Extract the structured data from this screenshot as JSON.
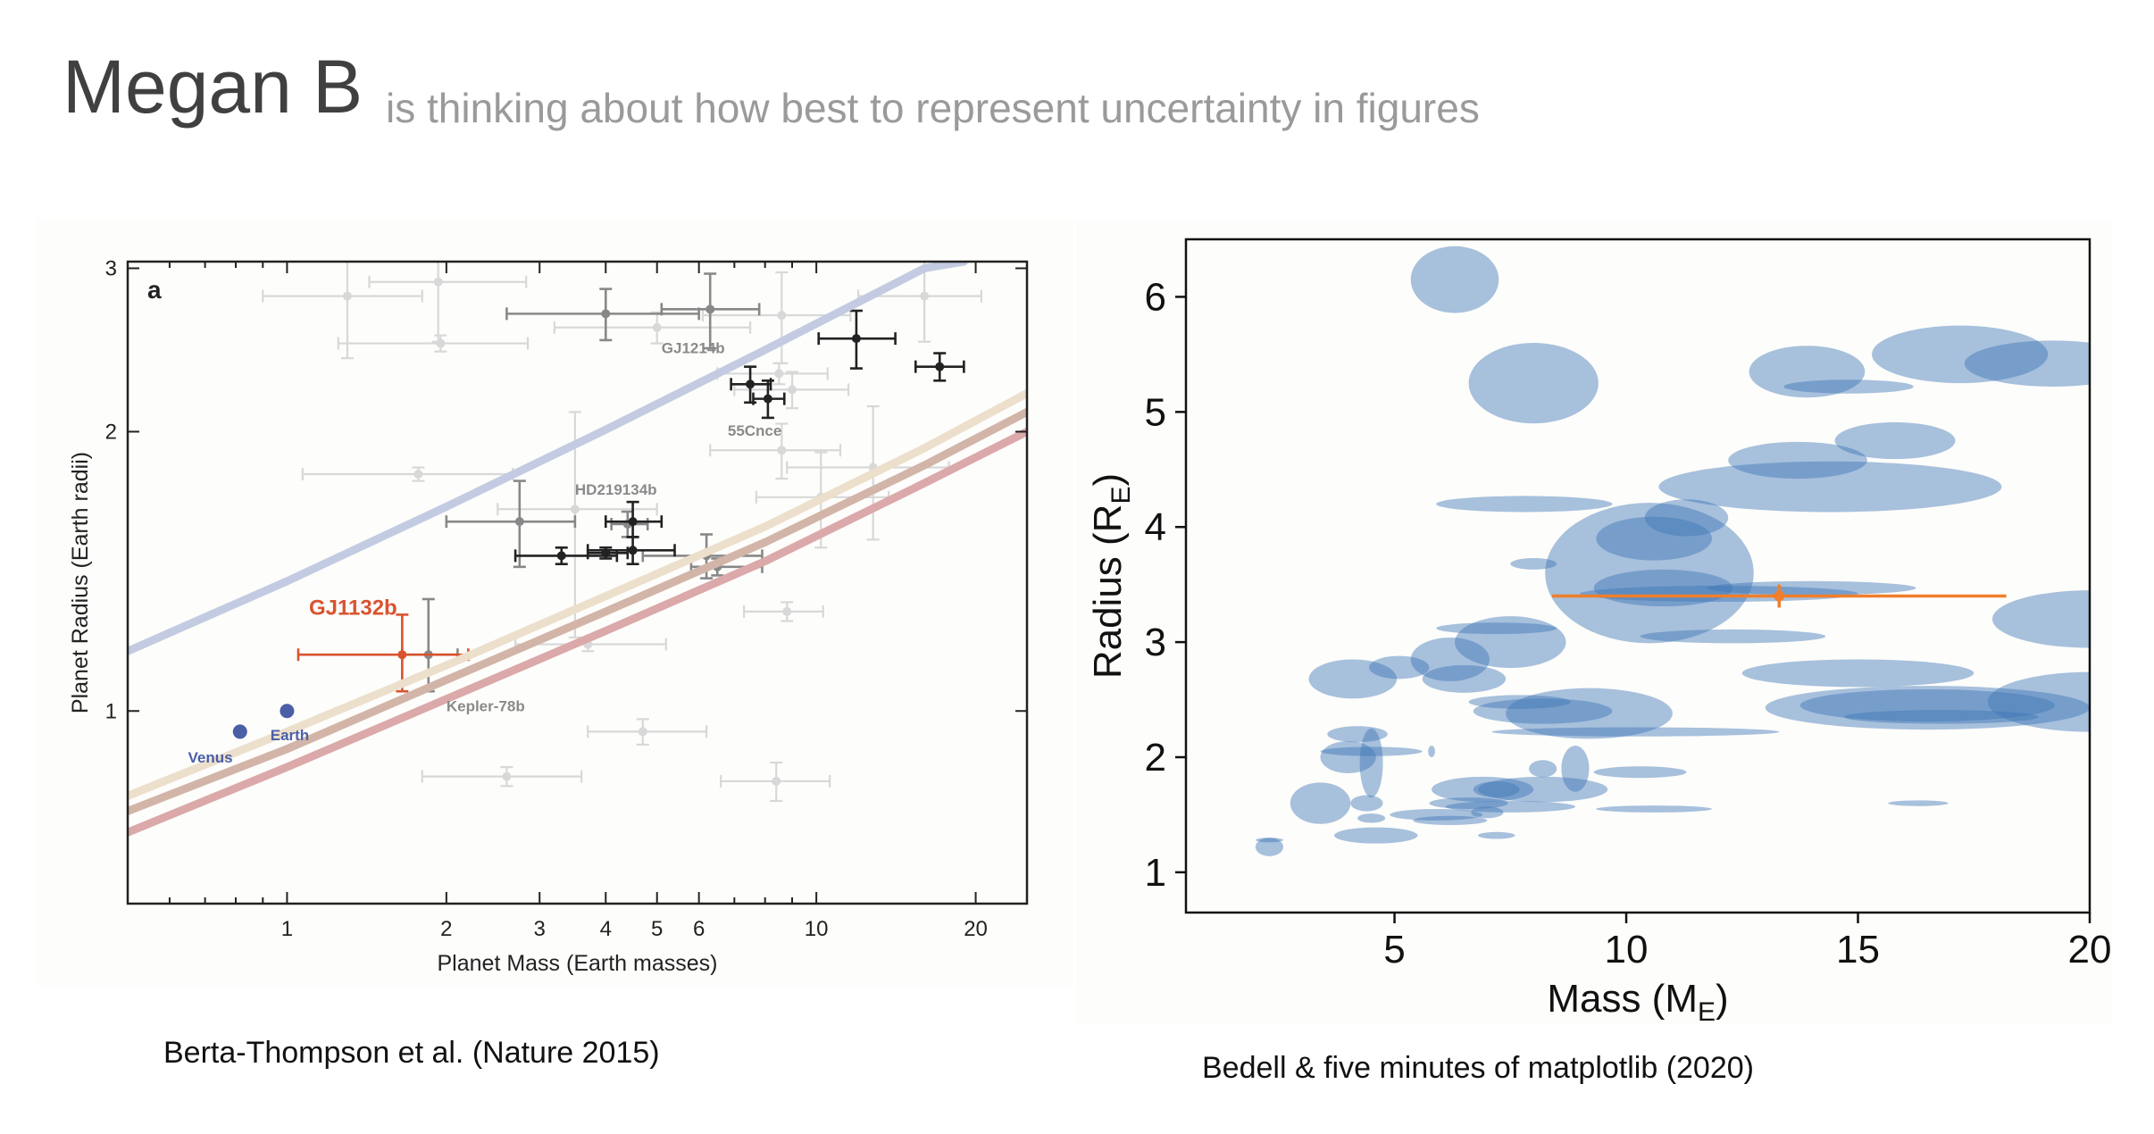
{
  "header": {
    "name": "Megan B",
    "status": "is thinking about how best to represent uncertainty in figures"
  },
  "captions": {
    "left": "Berta-Thompson et al. (Nature 2015)",
    "right": "Bedell & five minutes of matplotlib (2020)"
  },
  "chart_data": [
    {
      "type": "scatter",
      "panel_label": "a",
      "xlabel": "Planet Mass (Earth masses)",
      "ylabel": "Planet Radius (Earth radii)",
      "xscale": "log",
      "yscale": "log",
      "xlim": [
        0.5,
        25
      ],
      "ylim": [
        0.62,
        3.05
      ],
      "x_ticks": [
        1,
        2,
        3,
        4,
        5,
        6,
        10,
        20
      ],
      "x_ticklabels": [
        "1",
        "2",
        "3",
        "4",
        "5",
        "6",
        "10",
        "20"
      ],
      "y_ticks": [
        1,
        2,
        3
      ],
      "y_ticklabels": [
        "1",
        "2",
        "3"
      ],
      "colors": {
        "highlight": "#d9532f",
        "solar": "#4b5fa6",
        "dark": "#222222",
        "mid": "#888888",
        "faint": "#d8d8d8"
      },
      "curves": [
        {
          "color": "#c3cbe2",
          "points": [
            [
              0.5,
              1.16
            ],
            [
              1,
              1.38
            ],
            [
              2,
              1.66
            ],
            [
              4,
              2.01
            ],
            [
              8,
              2.45
            ],
            [
              16,
              3.0
            ],
            [
              19,
              3.05
            ]
          ]
        },
        {
          "color": "#ecdfcb",
          "points": [
            [
              0.5,
              0.81
            ],
            [
              1,
              0.95
            ],
            [
              2,
              1.12
            ],
            [
              4,
              1.33
            ],
            [
              8,
              1.58
            ],
            [
              16,
              1.92
            ],
            [
              25,
              2.2
            ]
          ]
        },
        {
          "color": "#d2b5a8",
          "points": [
            [
              0.5,
              0.78
            ],
            [
              1,
              0.91
            ],
            [
              2,
              1.08
            ],
            [
              4,
              1.28
            ],
            [
              8,
              1.52
            ],
            [
              16,
              1.84
            ],
            [
              25,
              2.1
            ]
          ]
        },
        {
          "color": "#dba9a9",
          "points": [
            [
              0.5,
              0.74
            ],
            [
              1,
              0.87
            ],
            [
              2,
              1.03
            ],
            [
              4,
              1.22
            ],
            [
              8,
              1.45
            ],
            [
              16,
              1.76
            ],
            [
              25,
              2.0
            ]
          ]
        }
      ],
      "points": [
        {
          "x": 1.65,
          "y": 1.15,
          "xerr": [
            0.6,
            0.55
          ],
          "yerr": [
            0.1,
            0.12
          ],
          "style": "highlight"
        },
        {
          "x": 1.85,
          "y": 1.15,
          "xerr": [
            0.2,
            0.25
          ],
          "yerr": [
            0.1,
            0.17
          ],
          "style": "mid"
        },
        {
          "x": 0.815,
          "y": 0.95,
          "style": "solar"
        },
        {
          "x": 1.0,
          "y": 1.0,
          "style": "solar"
        },
        {
          "x": 4.5,
          "y": 1.6,
          "xerr": [
            0.5,
            0.6
          ],
          "yerr": [
            0.06,
            0.08
          ],
          "style": "dark"
        },
        {
          "x": 4.5,
          "y": 1.49,
          "xerr": [
            0.8,
            0.9
          ],
          "yerr": [
            0.05,
            0.05
          ],
          "style": "dark"
        },
        {
          "x": 3.3,
          "y": 1.47,
          "xerr": [
            0.6,
            0.9
          ],
          "yerr": [
            0.03,
            0.03
          ],
          "style": "dark"
        },
        {
          "x": 4.0,
          "y": 1.48,
          "xerr": [
            0.3,
            0.4
          ],
          "yerr": [
            0.02,
            0.02
          ],
          "style": "dark"
        },
        {
          "x": 7.5,
          "y": 2.25,
          "xerr": [
            0.6,
            0.7
          ],
          "yerr": [
            0.1,
            0.1
          ],
          "style": "dark"
        },
        {
          "x": 8.1,
          "y": 2.17,
          "xerr": [
            0.5,
            0.6
          ],
          "yerr": [
            0.1,
            0.1
          ],
          "style": "dark"
        },
        {
          "x": 11.9,
          "y": 2.52,
          "xerr": [
            1.8,
            2.2
          ],
          "yerr": [
            0.18,
            0.18
          ],
          "style": "dark"
        },
        {
          "x": 17.1,
          "y": 2.35,
          "xerr": [
            1.7,
            1.9
          ],
          "yerr": [
            0.08,
            0.08
          ],
          "style": "dark"
        },
        {
          "x": 6.3,
          "y": 2.71,
          "xerr": [
            1.2,
            1.5
          ],
          "yerr": [
            0.25,
            0.25
          ],
          "style": "mid"
        },
        {
          "x": 4.0,
          "y": 2.68,
          "xerr": [
            1.4,
            2.0
          ],
          "yerr": [
            0.17,
            0.17
          ],
          "style": "mid"
        },
        {
          "x": 2.75,
          "y": 1.6,
          "xerr": [
            0.75,
            0.75
          ],
          "yerr": [
            0.17,
            0.17
          ],
          "style": "mid"
        },
        {
          "x": 6.2,
          "y": 1.47,
          "xerr": [
            1.5,
            1.7
          ],
          "yerr": [
            0.08,
            0.08
          ],
          "style": "mid"
        },
        {
          "x": 6.5,
          "y": 1.43,
          "xerr": [
            0.7,
            1.4
          ],
          "yerr": [
            0.03,
            0.03
          ],
          "style": "mid"
        },
        {
          "x": 4.4,
          "y": 1.59,
          "xerr": [
            0.3,
            0.4
          ],
          "yerr": [
            0.05,
            0.05
          ],
          "style": "mid"
        },
        {
          "x": 8.6,
          "y": 1.91,
          "xerr": [
            2.3,
            2.5
          ],
          "yerr": [
            0.13,
            0.13
          ],
          "style": "faint"
        },
        {
          "x": 9.0,
          "y": 2.22,
          "xerr": [
            2.0,
            2.5
          ],
          "yerr": [
            0.1,
            0.1
          ],
          "style": "faint"
        },
        {
          "x": 8.5,
          "y": 2.31,
          "xerr": [
            2.0,
            2.0
          ],
          "yerr": [
            0.06,
            0.06
          ],
          "style": "faint"
        },
        {
          "x": 1.3,
          "y": 2.8,
          "xerr": [
            0.4,
            0.5
          ],
          "yerr": [
            0.4,
            0.4
          ],
          "style": "faint"
        },
        {
          "x": 1.93,
          "y": 2.9,
          "xerr": [
            0.5,
            0.9
          ],
          "yerr": [
            0.4,
            0.4
          ],
          "style": "faint"
        },
        {
          "x": 1.95,
          "y": 2.49,
          "xerr": [
            0.7,
            0.9
          ],
          "yerr": [
            0.05,
            0.05
          ],
          "style": "faint"
        },
        {
          "x": 5.0,
          "y": 2.59,
          "xerr": [
            1.8,
            2.5
          ],
          "yerr": [
            0.1,
            0.1
          ],
          "style": "faint"
        },
        {
          "x": 8.6,
          "y": 2.67,
          "xerr": [
            2.5,
            3.0
          ],
          "yerr": [
            0.3,
            0.3
          ],
          "style": "faint"
        },
        {
          "x": 16.0,
          "y": 2.8,
          "xerr": [
            4.0,
            4.5
          ],
          "yerr": [
            0.3,
            0.4
          ],
          "style": "faint"
        },
        {
          "x": 8.8,
          "y": 1.28,
          "xerr": [
            1.5,
            1.5
          ],
          "yerr": [
            0.03,
            0.03
          ],
          "style": "faint"
        },
        {
          "x": 3.7,
          "y": 1.18,
          "xerr": [
            1.0,
            1.5
          ],
          "yerr": [
            0.02,
            0.02
          ],
          "style": "faint"
        },
        {
          "x": 4.7,
          "y": 0.95,
          "xerr": [
            1.0,
            1.5
          ],
          "yerr": [
            0.03,
            0.03
          ],
          "style": "faint"
        },
        {
          "x": 2.6,
          "y": 0.85,
          "xerr": [
            0.8,
            1.0
          ],
          "yerr": [
            0.02,
            0.02
          ],
          "style": "faint"
        },
        {
          "x": 8.4,
          "y": 0.84,
          "xerr": [
            1.8,
            2.2
          ],
          "yerr": [
            0.04,
            0.04
          ],
          "style": "faint"
        },
        {
          "x": 1.77,
          "y": 1.8,
          "xerr": [
            0.7,
            0.9
          ],
          "yerr": [
            0.03,
            0.03
          ],
          "style": "faint"
        },
        {
          "x": 12.8,
          "y": 1.83,
          "xerr": [
            4.0,
            5.0
          ],
          "yerr": [
            0.3,
            0.3
          ],
          "style": "faint"
        },
        {
          "x": 10.2,
          "y": 1.7,
          "xerr": [
            2.5,
            3.5
          ],
          "yerr": [
            0.2,
            0.2
          ],
          "style": "faint"
        },
        {
          "x": 3.5,
          "y": 1.65,
          "xerr": [
            1.0,
            1.5
          ],
          "yerr": [
            0.45,
            0.45
          ],
          "style": "faint"
        }
      ],
      "annotations": [
        {
          "text": "GJ1132b",
          "x": 1.1,
          "y": 1.27,
          "style": "highlight-label"
        },
        {
          "text": "Venus",
          "x": 0.65,
          "y": 0.88,
          "style": "solar-label"
        },
        {
          "text": "Earth",
          "x": 0.93,
          "y": 0.93,
          "style": "solar-label"
        },
        {
          "text": "Kepler-78b",
          "x": 2.0,
          "y": 1.0,
          "style": "grey-label"
        },
        {
          "text": "HD219134b",
          "x": 3.5,
          "y": 1.71,
          "style": "grey-label"
        },
        {
          "text": "55Cnce",
          "x": 6.8,
          "y": 1.98,
          "style": "grey-label"
        },
        {
          "text": "GJ1214b",
          "x": 5.1,
          "y": 2.43,
          "style": "grey-label"
        }
      ]
    },
    {
      "type": "scatter",
      "xlabel": "Mass (M_E)",
      "ylabel": "Radius (R_E)",
      "xlim": [
        0.5,
        20
      ],
      "ylim": [
        0.65,
        6.5
      ],
      "x_ticks": [
        5,
        10,
        15,
        20
      ],
      "y_ticks": [
        1,
        2,
        3,
        4,
        5,
        6
      ],
      "ellipse_color": "#3d76b5",
      "highlight_color": "#ef7f2c",
      "ellipses": [
        {
          "x": 6.3,
          "y": 6.15,
          "w": 1.9,
          "h": 0.58
        },
        {
          "x": 8.0,
          "y": 5.25,
          "w": 2.8,
          "h": 0.7
        },
        {
          "x": 13.9,
          "y": 5.35,
          "w": 2.5,
          "h": 0.45
        },
        {
          "x": 17.2,
          "y": 5.5,
          "w": 3.8,
          "h": 0.5
        },
        {
          "x": 19.2,
          "y": 5.42,
          "w": 3.8,
          "h": 0.4
        },
        {
          "x": 15.8,
          "y": 4.75,
          "w": 2.6,
          "h": 0.32
        },
        {
          "x": 14.8,
          "y": 5.22,
          "w": 2.8,
          "h": 0.12
        },
        {
          "x": 13.7,
          "y": 4.58,
          "w": 3.0,
          "h": 0.32
        },
        {
          "x": 14.4,
          "y": 4.35,
          "w": 7.4,
          "h": 0.44
        },
        {
          "x": 7.8,
          "y": 4.2,
          "w": 3.8,
          "h": 0.14
        },
        {
          "x": 11.3,
          "y": 4.08,
          "w": 1.8,
          "h": 0.32
        },
        {
          "x": 10.6,
          "y": 3.9,
          "w": 2.5,
          "h": 0.38
        },
        {
          "x": 10.5,
          "y": 3.6,
          "w": 4.5,
          "h": 1.22
        },
        {
          "x": 8.0,
          "y": 3.68,
          "w": 1.0,
          "h": 0.1
        },
        {
          "x": 10.8,
          "y": 3.47,
          "w": 3.0,
          "h": 0.32
        },
        {
          "x": 14.0,
          "y": 3.47,
          "w": 4.5,
          "h": 0.12
        },
        {
          "x": 12.0,
          "y": 3.42,
          "w": 6.0,
          "h": 0.14
        },
        {
          "x": 12.3,
          "y": 3.05,
          "w": 4.0,
          "h": 0.12
        },
        {
          "x": 20.0,
          "y": 3.2,
          "w": 4.2,
          "h": 0.5
        },
        {
          "x": 7.5,
          "y": 3.0,
          "w": 2.4,
          "h": 0.45
        },
        {
          "x": 7.2,
          "y": 3.12,
          "w": 2.6,
          "h": 0.1
        },
        {
          "x": 6.2,
          "y": 2.85,
          "w": 1.7,
          "h": 0.38
        },
        {
          "x": 5.1,
          "y": 2.78,
          "w": 1.3,
          "h": 0.2
        },
        {
          "x": 4.1,
          "y": 2.68,
          "w": 1.9,
          "h": 0.34
        },
        {
          "x": 6.5,
          "y": 2.68,
          "w": 1.8,
          "h": 0.24
        },
        {
          "x": 15.0,
          "y": 2.73,
          "w": 5.0,
          "h": 0.24
        },
        {
          "x": 20.0,
          "y": 2.48,
          "w": 4.4,
          "h": 0.52
        },
        {
          "x": 16.5,
          "y": 2.43,
          "w": 7.0,
          "h": 0.38
        },
        {
          "x": 16.5,
          "y": 2.45,
          "w": 5.5,
          "h": 0.28
        },
        {
          "x": 16.8,
          "y": 2.35,
          "w": 4.2,
          "h": 0.12
        },
        {
          "x": 9.2,
          "y": 2.38,
          "w": 3.6,
          "h": 0.44
        },
        {
          "x": 8.2,
          "y": 2.4,
          "w": 3.0,
          "h": 0.22
        },
        {
          "x": 7.7,
          "y": 2.48,
          "w": 2.2,
          "h": 0.12
        },
        {
          "x": 10.2,
          "y": 2.22,
          "w": 6.2,
          "h": 0.08
        },
        {
          "x": 4.2,
          "y": 2.2,
          "w": 1.3,
          "h": 0.14
        },
        {
          "x": 4.0,
          "y": 2.0,
          "w": 1.2,
          "h": 0.28
        },
        {
          "x": 4.5,
          "y": 2.05,
          "w": 2.2,
          "h": 0.08
        },
        {
          "x": 4.5,
          "y": 1.95,
          "w": 0.5,
          "h": 0.6
        },
        {
          "x": 5.8,
          "y": 2.05,
          "w": 0.15,
          "h": 0.1
        },
        {
          "x": 8.2,
          "y": 1.9,
          "w": 0.6,
          "h": 0.15
        },
        {
          "x": 8.9,
          "y": 1.9,
          "w": 0.6,
          "h": 0.4
        },
        {
          "x": 10.3,
          "y": 1.87,
          "w": 2.0,
          "h": 0.1
        },
        {
          "x": 3.4,
          "y": 1.6,
          "w": 1.3,
          "h": 0.36
        },
        {
          "x": 4.4,
          "y": 1.6,
          "w": 0.7,
          "h": 0.14
        },
        {
          "x": 6.9,
          "y": 1.72,
          "w": 2.2,
          "h": 0.22
        },
        {
          "x": 7.2,
          "y": 1.72,
          "w": 1.0,
          "h": 0.14
        },
        {
          "x": 8.2,
          "y": 1.72,
          "w": 2.8,
          "h": 0.22
        },
        {
          "x": 6.6,
          "y": 1.6,
          "w": 1.7,
          "h": 0.1
        },
        {
          "x": 7.5,
          "y": 1.57,
          "w": 2.8,
          "h": 0.1
        },
        {
          "x": 10.6,
          "y": 1.55,
          "w": 2.5,
          "h": 0.06
        },
        {
          "x": 5.9,
          "y": 1.5,
          "w": 2.0,
          "h": 0.1
        },
        {
          "x": 6.2,
          "y": 1.45,
          "w": 1.6,
          "h": 0.08
        },
        {
          "x": 7.0,
          "y": 1.52,
          "w": 0.7,
          "h": 0.1
        },
        {
          "x": 4.5,
          "y": 1.47,
          "w": 0.6,
          "h": 0.08
        },
        {
          "x": 4.6,
          "y": 1.32,
          "w": 1.8,
          "h": 0.14
        },
        {
          "x": 7.2,
          "y": 1.32,
          "w": 0.8,
          "h": 0.06
        },
        {
          "x": 2.3,
          "y": 1.22,
          "w": 0.6,
          "h": 0.16
        },
        {
          "x": 2.3,
          "y": 1.28,
          "w": 0.6,
          "h": 0.04
        },
        {
          "x": 16.3,
          "y": 1.6,
          "w": 1.3,
          "h": 0.05
        }
      ],
      "highlight": {
        "x": 13.3,
        "y": 3.4,
        "xerr": [
          4.9,
          4.9
        ],
        "yerr": [
          0.1,
          0.1
        ]
      }
    }
  ]
}
